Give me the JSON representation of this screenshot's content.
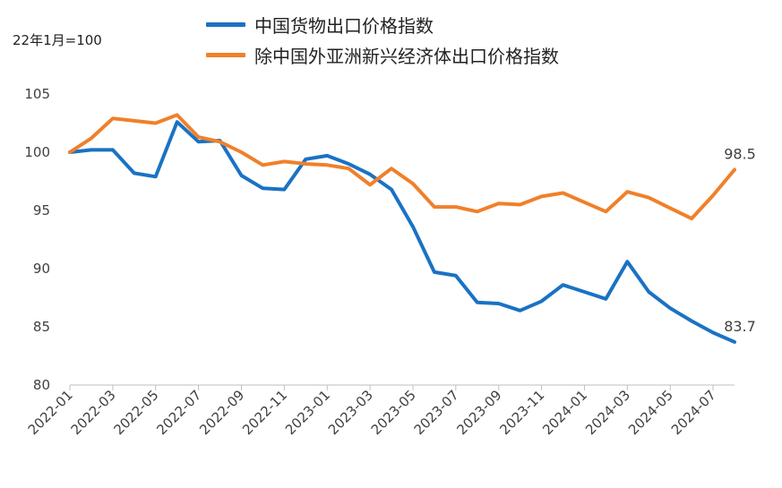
{
  "unit_note": "22年1月=100",
  "colors": {
    "blue": "#1A72C4",
    "orange": "#F0802A",
    "axis": "#BFBFBF"
  },
  "chart_data": {
    "type": "line",
    "ylim": [
      80,
      105
    ],
    "yticks": [
      80,
      85,
      90,
      95,
      100,
      105
    ],
    "x": [
      "2022-01",
      "2022-02",
      "2022-03",
      "2022-04",
      "2022-05",
      "2022-06",
      "2022-07",
      "2022-08",
      "2022-09",
      "2022-10",
      "2022-11",
      "2022-12",
      "2023-01",
      "2023-02",
      "2023-03",
      "2023-04",
      "2023-05",
      "2023-06",
      "2023-07",
      "2023-08",
      "2023-09",
      "2023-10",
      "2023-11",
      "2023-12",
      "2024-01",
      "2024-02",
      "2024-03",
      "2024-04",
      "2024-05",
      "2024-06",
      "2024-07",
      "2024-08"
    ],
    "xtick_labels": [
      "2022-01",
      "2022-03",
      "2022-05",
      "2022-07",
      "2022-09",
      "2022-11",
      "2023-01",
      "2023-03",
      "2023-05",
      "2023-07",
      "2023-09",
      "2023-11",
      "2024-01",
      "2024-03",
      "2024-05",
      "2024-07"
    ],
    "series": [
      {
        "name": "中国货物出口价格指数",
        "color": "#1A72C4",
        "values": [
          100.0,
          100.2,
          100.2,
          98.2,
          97.9,
          102.6,
          100.9,
          101.0,
          98.0,
          96.9,
          96.8,
          99.4,
          99.7,
          99.0,
          98.1,
          96.8,
          93.6,
          89.7,
          89.4,
          87.1,
          87.0,
          86.4,
          87.2,
          88.6,
          88.0,
          87.4,
          90.6,
          88.0,
          86.6,
          85.5,
          84.5,
          83.7
        ],
        "end_label": "83.7"
      },
      {
        "name": "除中国外亚洲新兴经济体出口价格指数",
        "color": "#F0802A",
        "values": [
          100.0,
          101.2,
          102.9,
          102.7,
          102.5,
          103.2,
          101.3,
          100.9,
          100.0,
          98.9,
          99.2,
          99.0,
          98.9,
          98.6,
          97.2,
          98.6,
          97.3,
          95.3,
          95.3,
          94.9,
          95.6,
          95.5,
          96.2,
          96.5,
          95.7,
          94.9,
          96.6,
          96.1,
          95.2,
          94.3,
          96.3,
          98.5
        ],
        "end_label": "98.5"
      }
    ]
  }
}
